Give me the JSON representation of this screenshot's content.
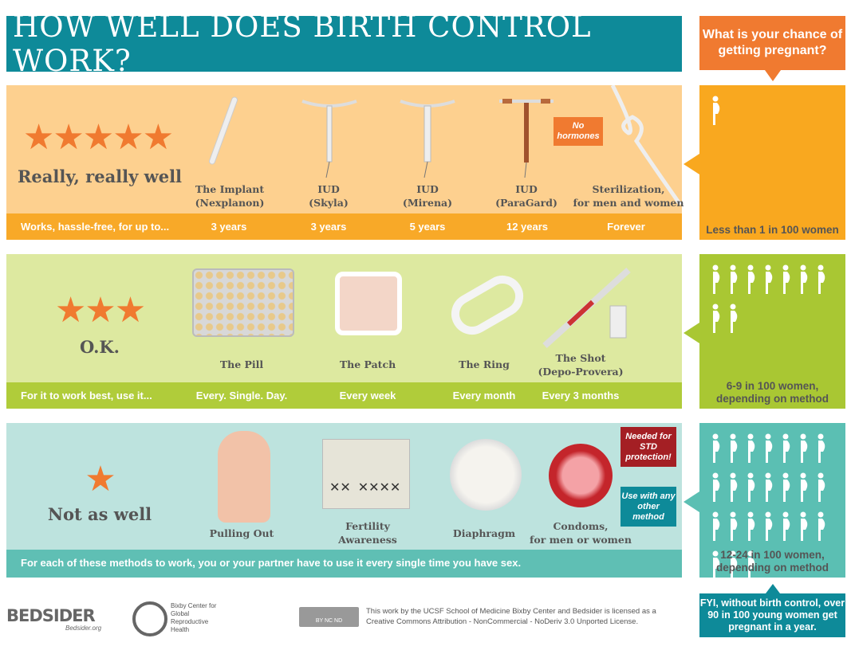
{
  "title": "HOW WELL DOES BIRTH CONTROL WORK?",
  "question": "What is your chance of getting pregnant?",
  "colors": {
    "teal": "#0e8a99",
    "orange": "#f07a30",
    "gold": "#f9a81f",
    "green": "#a9c733",
    "aqua": "#5bbfb3"
  },
  "tiers": [
    {
      "stars": 5,
      "rating": "Really, really well",
      "band_label": "Works, hassle-free, for up to...",
      "methods": [
        {
          "name": "The Implant",
          "sub": "(Nexplanon)",
          "value": "3 years"
        },
        {
          "name": "IUD",
          "sub": "(Skyla)",
          "value": "3 years"
        },
        {
          "name": "IUD",
          "sub": "(Mirena)",
          "value": "5 years"
        },
        {
          "name": "IUD",
          "sub": "(ParaGard)",
          "value": "12 years"
        },
        {
          "name": "Sterilization,",
          "sub": "for men and women",
          "value": "Forever"
        }
      ],
      "tag": "No hormones",
      "chance": "Less than 1 in 100 women",
      "figures": 1
    },
    {
      "stars": 3,
      "rating": "O.K.",
      "band_label": "For it to work best, use it...",
      "methods": [
        {
          "name": "The Pill",
          "sub": "",
          "value": "Every. Single. Day."
        },
        {
          "name": "The Patch",
          "sub": "",
          "value": "Every week"
        },
        {
          "name": "The Ring",
          "sub": "",
          "value": "Every month"
        },
        {
          "name": "The Shot",
          "sub": "(Depo-Provera)",
          "value": "Every 3 months"
        }
      ],
      "chance": "6-9 in 100 women, depending on method",
      "figures": 9
    },
    {
      "stars": 1,
      "rating": "Not as well",
      "band_label": "For each of these methods to work, you or your partner have to use it every single time you have sex.",
      "methods": [
        {
          "name": "Pulling Out",
          "sub": ""
        },
        {
          "name": "Fertility",
          "sub": "Awareness"
        },
        {
          "name": "Diaphragm",
          "sub": ""
        },
        {
          "name": "Condoms,",
          "sub": "for men or women"
        }
      ],
      "tag1": "Needed for STD protection!",
      "tag2": "Use with any other method",
      "chance": "12-24 in 100 women, depending on method",
      "figures": 24
    }
  ],
  "fyi": "FYI, without birth control, over 90 in 100 young women get pregnant in a year.",
  "footer": {
    "bedsider": "BEDSIDER",
    "bedsider_url": "Bedsider.org",
    "bixby": "Bixby Center for Global Reproductive Health",
    "license": "This work by the UCSF School of Medicine Bixby Center and Bedsider is licensed as a Creative Commons Attribution - NonCommercial - NoDeriv 3.0 Unported License.",
    "cc": "BY NC ND"
  }
}
